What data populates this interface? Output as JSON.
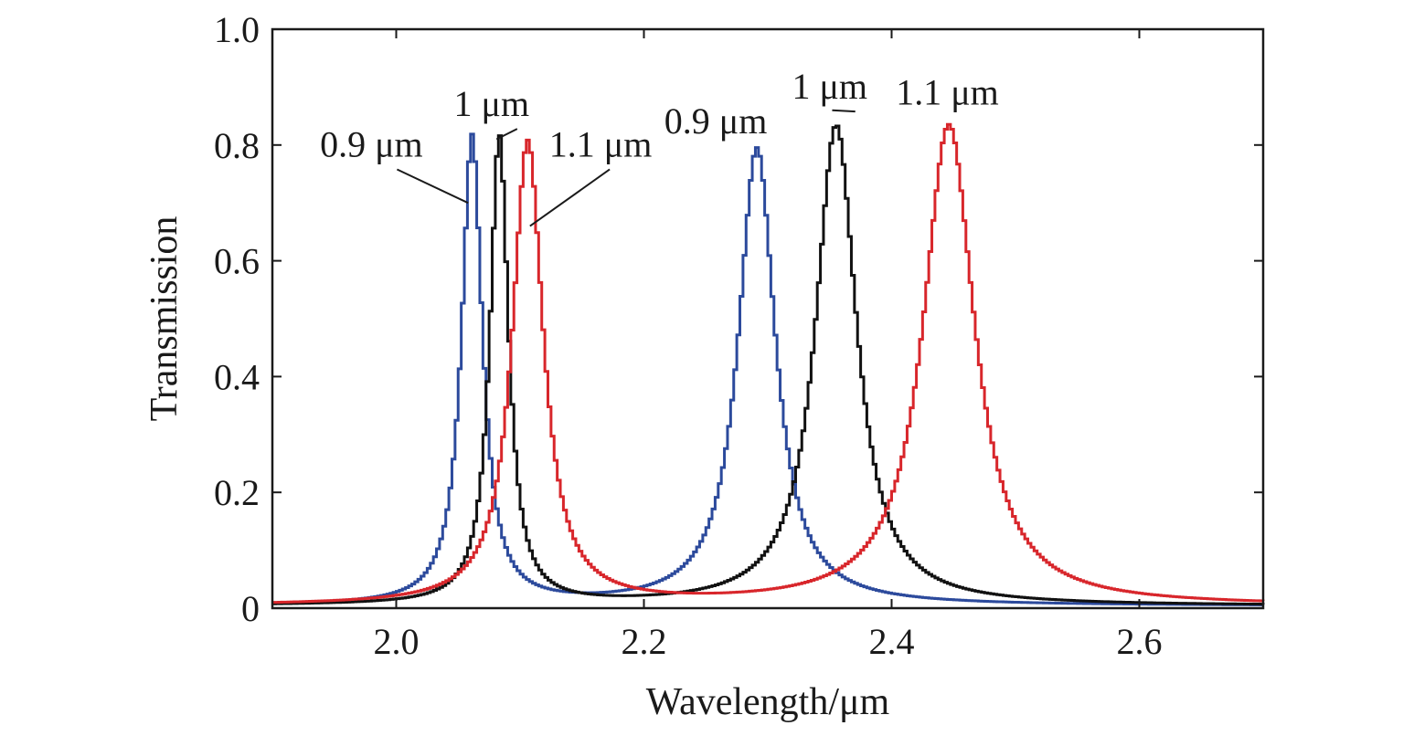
{
  "chart_data": {
    "type": "line",
    "title": "",
    "xlabel": "Wavelength/μm",
    "ylabel": "Transmission",
    "xlim": [
      1.9,
      2.7
    ],
    "ylim": [
      0,
      1.0
    ],
    "xticks": [
      2.0,
      2.2,
      2.4,
      2.6
    ],
    "xtick_labels": [
      "2.0",
      "2.2",
      "2.4",
      "2.6"
    ],
    "yticks": [
      0,
      0.2,
      0.4,
      0.6,
      0.8,
      1.0
    ],
    "ytick_labels": [
      "0",
      "0.2",
      "0.4",
      "0.6",
      "0.8",
      "1.0"
    ],
    "grid": false,
    "legend": "none",
    "series": [
      {
        "color": "#2c4a9c",
        "peaks": [
          {
            "center": 2.06,
            "height": 0.81,
            "fwhm": 0.02
          },
          {
            "center": 2.29,
            "height": 0.79,
            "fwhm": 0.036
          }
        ]
      },
      {
        "color": "#111111",
        "peaks": [
          {
            "center": 2.082,
            "height": 0.81,
            "fwhm": 0.018
          },
          {
            "center": 2.354,
            "height": 0.83,
            "fwhm": 0.04
          }
        ]
      },
      {
        "color": "#d8262b",
        "peaks": [
          {
            "center": 2.105,
            "height": 0.8,
            "fwhm": 0.03
          },
          {
            "center": 2.445,
            "height": 0.83,
            "fwhm": 0.05
          }
        ]
      }
    ],
    "annotations": [
      {
        "text": "0.9 μm",
        "x": 1.98,
        "y": 0.78,
        "arrow_to": [
          2.058,
          0.7
        ]
      },
      {
        "text": "1 μm",
        "x": 2.077,
        "y": 0.85,
        "arrow_to": [
          2.081,
          0.81
        ]
      },
      {
        "text": "1.1 μm",
        "x": 2.165,
        "y": 0.78,
        "arrow_to": [
          2.108,
          0.66
        ]
      },
      {
        "text": "0.9 μm",
        "x": 2.258,
        "y": 0.82,
        "arrow_to": null
      },
      {
        "text": "1 μm",
        "x": 2.35,
        "y": 0.88,
        "arrow_to": [
          2.352,
          0.86
        ]
      },
      {
        "text": "1.1 μm",
        "x": 2.445,
        "y": 0.87,
        "arrow_to": null
      }
    ]
  }
}
